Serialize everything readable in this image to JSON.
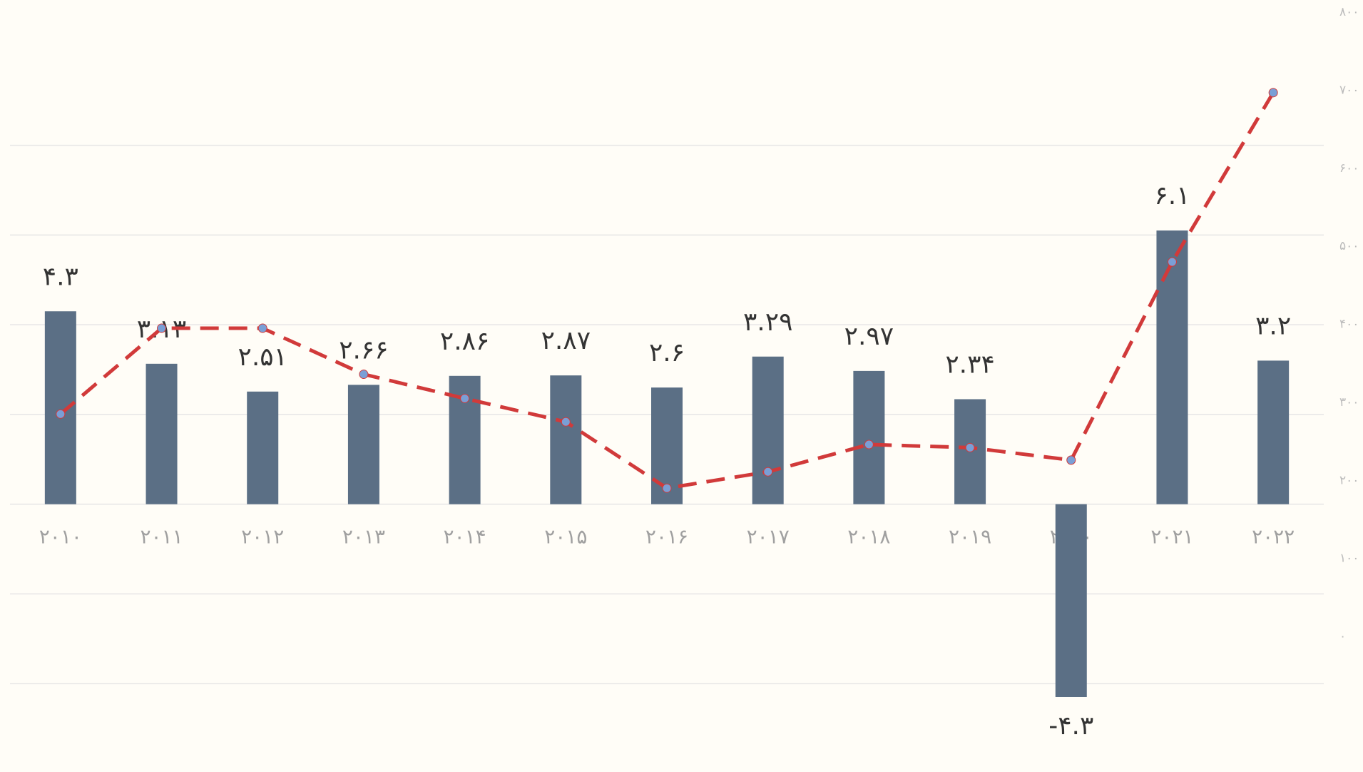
{
  "chart_data": {
    "type": "bar_line",
    "categories": [
      "۲۰۱۰",
      "۲۰۱۱",
      "۲۰۱۲",
      "۲۰۱۳",
      "۲۰۱۴",
      "۲۰۱۵",
      "۲۰۱۶",
      "۲۰۱۷",
      "۲۰۱۸",
      "۲۰۱۹",
      "۲۰۲۰",
      "۲۰۲۱",
      "۲۰۲۲"
    ],
    "series": [
      {
        "type": "bar",
        "color": "#5b6f85",
        "values": [
          4.3,
          3.13,
          2.51,
          2.66,
          2.86,
          2.87,
          2.6,
          3.29,
          2.97,
          2.34,
          -4.3,
          6.1,
          3.2
        ],
        "value_labels": [
          "۴.۳",
          "۳.۱۳",
          "۲.۵۱",
          "۲.۶۶",
          "۲.۸۶",
          "۲.۸۷",
          "۲.۶",
          "۳.۲۹",
          "۲.۹۷",
          "۲.۳۴",
          "-۴.۳",
          "۶.۱",
          "۳.۲"
        ]
      },
      {
        "type": "line",
        "axis": "y2",
        "color": "#d13a3a",
        "marker_color": "#7a9fd6",
        "dashed": true,
        "values": [
          285,
          395,
          395,
          336,
          305,
          275,
          190,
          211,
          246,
          242,
          226,
          480,
          697
        ]
      }
    ],
    "ylim": [
      -5,
      11
    ],
    "yticks": [
      -4,
      -2,
      0,
      2,
      4,
      6,
      8
    ],
    "y2lim": [
      -118,
      802
    ],
    "y2ticks": [
      {
        "value": 0,
        "label": "۰"
      },
      {
        "value": 100,
        "label": "۱۰۰"
      },
      {
        "value": 200,
        "label": "۲۰۰"
      },
      {
        "value": 300,
        "label": "۳۰۰"
      },
      {
        "value": 400,
        "label": "۴۰۰"
      },
      {
        "value": 500,
        "label": "۵۰۰"
      },
      {
        "value": 600,
        "label": "۶۰۰"
      },
      {
        "value": 700,
        "label": "۷۰۰"
      },
      {
        "value": 800,
        "label": "۸۰۰"
      }
    ],
    "grid": true
  }
}
